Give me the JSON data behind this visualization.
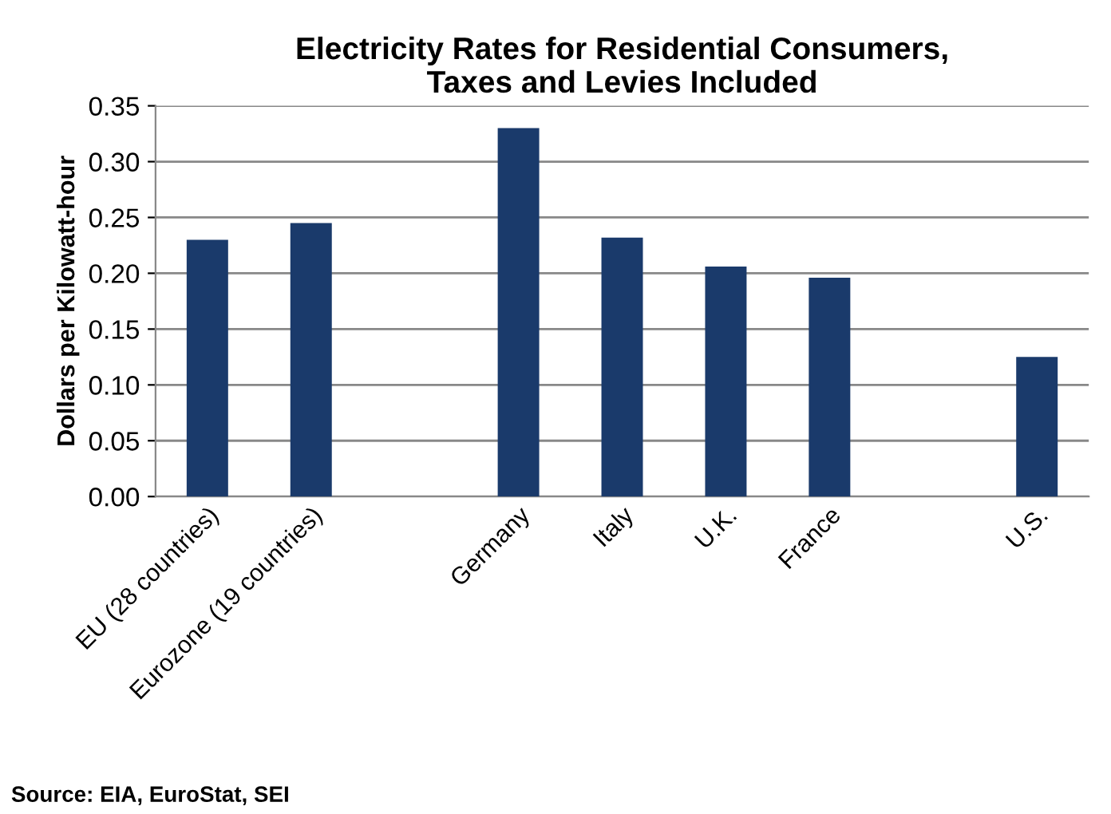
{
  "chart_data": {
    "type": "bar",
    "title": "Electricity Rates for Residential Consumers,\nTaxes and Levies Included",
    "ylabel": "Dollars per Kilowatt-hour",
    "categories": [
      "EU (28 countries)",
      "Eurozone (19 countries)",
      null,
      "Germany",
      "Italy",
      "U.K.",
      "France",
      null,
      "U.S."
    ],
    "values": [
      0.23,
      0.245,
      null,
      0.33,
      0.232,
      0.206,
      0.196,
      null,
      0.125
    ],
    "color": "#1a3a6b",
    "ylim": [
      0,
      0.35
    ],
    "yticks": [
      {
        "value": 0,
        "label": "0.00"
      },
      {
        "value": 0.05,
        "label": "0.05"
      },
      {
        "value": 0.1,
        "label": "0.10"
      },
      {
        "value": 0.15,
        "label": "0.15"
      },
      {
        "value": 0.2,
        "label": "0.20"
      },
      {
        "value": 0.25,
        "label": "0.25"
      },
      {
        "value": 0.3,
        "label": "0.30"
      },
      {
        "value": 0.35,
        "label": "0.35"
      }
    ],
    "grid": "y",
    "annotations": [
      "Source: EIA, EuroStat, SEI"
    ]
  }
}
